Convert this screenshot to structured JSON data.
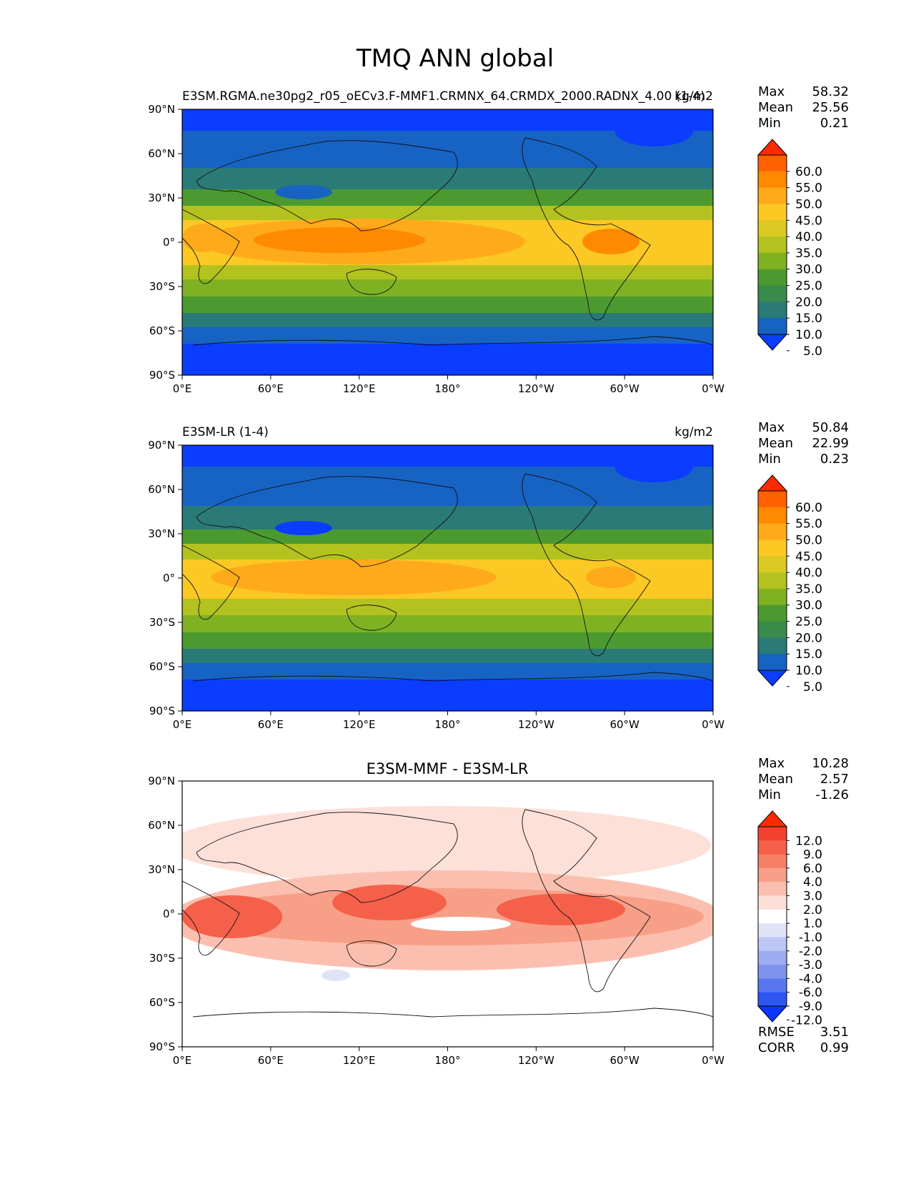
{
  "figure": {
    "title": "TMQ ANN global"
  },
  "axes": {
    "lat_ticks": [
      "90°N",
      "60°N",
      "30°N",
      "0°",
      "30°S",
      "60°S",
      "90°S"
    ],
    "lon_ticks": [
      "0°E",
      "60°E",
      "120°E",
      "180°",
      "120°W",
      "60°W",
      "0°W"
    ]
  },
  "panels": [
    {
      "title_left": "E3SM.RGMA.ne30pg2_r05_oECv3.F-MMF1.CRMNX_64.CRMDX_2000.RADNX_4.00 (1-4)",
      "title_center": "",
      "units": "kg/m2",
      "stats": [
        {
          "label": "Max",
          "value": "58.32"
        },
        {
          "label": "Mean",
          "value": "25.56"
        },
        {
          "label": "Min",
          "value": "0.21"
        }
      ],
      "colorbar": {
        "labels": [
          "60.0",
          "55.0",
          "50.0",
          "45.0",
          "40.0",
          "35.0",
          "30.0",
          "25.0",
          "20.0",
          "15.0",
          "10.0",
          "5.0"
        ],
        "colors": [
          "#ff2a00",
          "#ff6200",
          "#ff8a00",
          "#ffaa1a",
          "#fbc824",
          "#dcc924",
          "#b3c21e",
          "#7fb222",
          "#4c9a2f",
          "#3a8a4c",
          "#2a7a78",
          "#1763c4",
          "#0a3dff"
        ]
      }
    },
    {
      "title_left": "E3SM-LR (1-4)",
      "title_center": "",
      "units": "kg/m2",
      "stats": [
        {
          "label": "Max",
          "value": "50.84"
        },
        {
          "label": "Mean",
          "value": "22.99"
        },
        {
          "label": "Min",
          "value": "0.23"
        }
      ],
      "colorbar": {
        "labels": [
          "60.0",
          "55.0",
          "50.0",
          "45.0",
          "40.0",
          "35.0",
          "30.0",
          "25.0",
          "20.0",
          "15.0",
          "10.0",
          "5.0"
        ],
        "colors": [
          "#ff2a00",
          "#ff6200",
          "#ff8a00",
          "#ffaa1a",
          "#fbc824",
          "#dcc924",
          "#b3c21e",
          "#7fb222",
          "#4c9a2f",
          "#3a8a4c",
          "#2a7a78",
          "#1763c4",
          "#0a3dff"
        ]
      }
    },
    {
      "title_left": "",
      "title_center": "E3SM-MMF - E3SM-LR",
      "units": "",
      "stats": [
        {
          "label": "Max",
          "value": "10.28"
        },
        {
          "label": "Mean",
          "value": "2.57"
        },
        {
          "label": "Min",
          "value": "-1.26"
        }
      ],
      "extra_stats": [
        {
          "label": "RMSE",
          "value": "3.51"
        },
        {
          "label": "CORR",
          "value": "0.99"
        }
      ],
      "colorbar": {
        "labels": [
          "12.0",
          "9.0",
          "6.0",
          "4.0",
          "3.0",
          "2.0",
          "1.0",
          "-1.0",
          "-2.0",
          "-3.0",
          "-4.0",
          "-6.0",
          "-9.0",
          "-12.0"
        ],
        "colors": [
          "#ff2a00",
          "#f2412f",
          "#f4604a",
          "#f58066",
          "#f89f88",
          "#fbbfb0",
          "#fde0d8",
          "#ffffff",
          "#dfe3f8",
          "#bdc6f5",
          "#9eadf1",
          "#7f93ed",
          "#5877ef",
          "#2e56f3",
          "#0a36ff"
        ]
      }
    }
  ]
}
